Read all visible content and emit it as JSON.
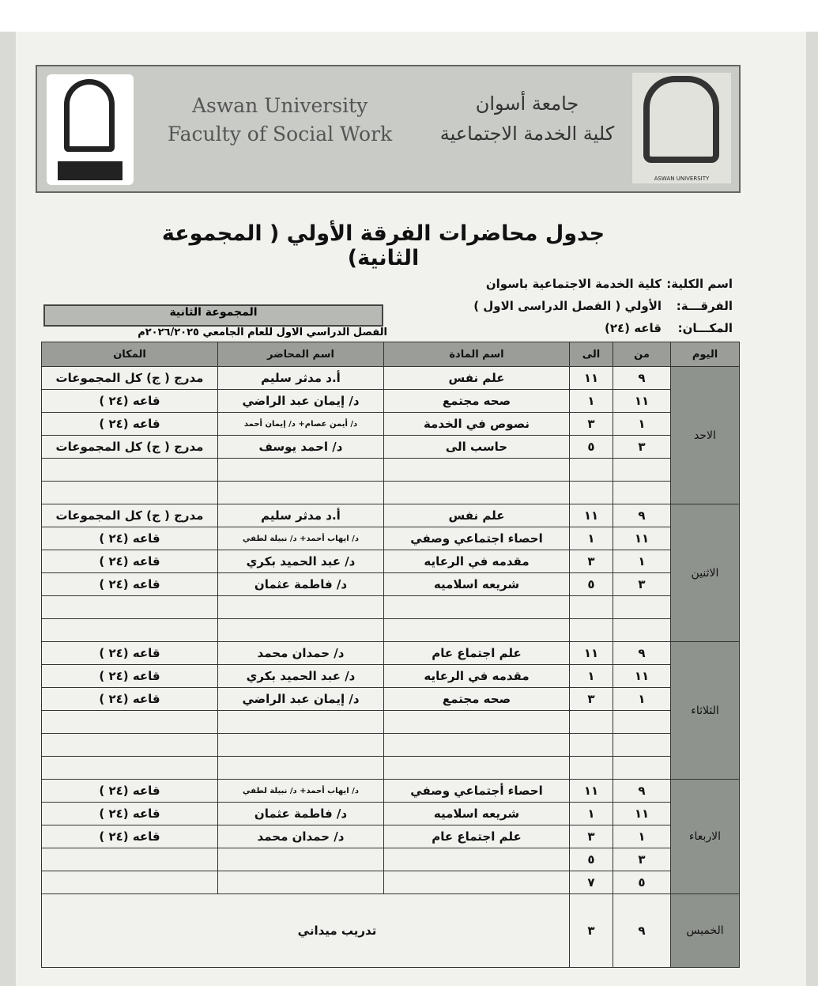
{
  "header": {
    "en_line1": "Aswan University",
    "en_line2": "Faculty of Social Work",
    "ar_line1": "جامعة أسوان",
    "ar_line2": "كلية الخدمة الاجتماعية",
    "logo_caption": "ASWAN UNIVERSITY"
  },
  "title": "جدول محاضرات الفرقة الأولي ( المجموعة الثانية)",
  "info": {
    "faculty_label": "اسم الكلية:",
    "faculty": "كلية الخدمة الاجتماعية باسوان",
    "year_label": "الفرقـــة:",
    "year": "الأولي ( الفصل الدراسى الاول )",
    "place_label": "المكـــان:",
    "place": "قاعه (٢٤)"
  },
  "group": "المجموعة الثانية",
  "term": "الفصل الدراسي الاول للعام الجامعي ٢٠٢٦/٢٠٢٥م",
  "columns": {
    "day": "اليوم",
    "from": "من",
    "to": "الى",
    "subject": "اسم المادة",
    "lecturer": "اسم المحاضر",
    "place": "المكان"
  },
  "days": [
    {
      "name": "الاحد",
      "rows": [
        {
          "from": "٩",
          "to": "١١",
          "subject": "علم نفس",
          "lecturer": "أ.د مدثر سليم",
          "place": "مدرج ( ج) كل المجموعات"
        },
        {
          "from": "١١",
          "to": "١",
          "subject": "صحه مجتمع",
          "lecturer": "د/ إيمان عبد الراضي",
          "place": "قاعه (٢٤ )"
        },
        {
          "from": "١",
          "to": "٣",
          "subject": "نصوص في الخدمة",
          "lecturer": "د/ أيمن عصام+ د/ إيمان أحمد",
          "place": "قاعه (٢٤ )"
        },
        {
          "from": "٣",
          "to": "٥",
          "subject": "حاسب الى",
          "lecturer": "د/ احمد يوسف",
          "place": "مدرج ( ج) كل المجموعات"
        },
        {},
        {}
      ]
    },
    {
      "name": "الاثنين",
      "rows": [
        {
          "from": "٩",
          "to": "١١",
          "subject": "علم نفس",
          "lecturer": "أ.د مدثر سليم",
          "place": "مدرج ( ج) كل المجموعات"
        },
        {
          "from": "١١",
          "to": "١",
          "subject": "احصاء اجتماعي وصفي",
          "lecturer": "د/ ايهاب أحمد+ د/ نبيلة لطفي",
          "place": "قاعه (٢٤ )"
        },
        {
          "from": "١",
          "to": "٣",
          "subject": "مقدمه في الرعايه",
          "lecturer": "د/ عبد الحميد بكري",
          "place": "قاعه (٢٤ )"
        },
        {
          "from": "٣",
          "to": "٥",
          "subject": "شريعه اسلاميه",
          "lecturer": "د/ فاطمة عثمان",
          "place": "قاعه (٢٤ )"
        },
        {},
        {}
      ]
    },
    {
      "name": "الثلاثاء",
      "rows": [
        {
          "from": "٩",
          "to": "١١",
          "subject": "علم اجتماع عام",
          "lecturer": "د/ حمدان محمد",
          "place": "قاعه (٢٤ )"
        },
        {
          "from": "١١",
          "to": "١",
          "subject": "مقدمه في الرعايه",
          "lecturer": "د/ عبد الحميد بكري",
          "place": "قاعه (٢٤ )"
        },
        {
          "from": "١",
          "to": "٣",
          "subject": "صحه مجتمع",
          "lecturer": "د/ إيمان عبد الراضي",
          "place": "قاعه (٢٤ )"
        },
        {},
        {},
        {}
      ]
    },
    {
      "name": "الاربعاء",
      "rows": [
        {
          "from": "٩",
          "to": "١١",
          "subject": "احصاء أجتماعي وصفي",
          "lecturer": "د/ ايهاب أحمد+ د/ نبيلة لطفي",
          "place": "قاعه (٢٤ )"
        },
        {
          "from": "١١",
          "to": "١",
          "subject": "شريعه اسلاميه",
          "lecturer": "د/ فاطمة عثمان",
          "place": "قاعه (٢٤ )"
        },
        {
          "from": "١",
          "to": "٣",
          "subject": "علم اجتماع عام",
          "lecturer": "د/ حمدان محمد",
          "place": "قاعه (٢٤ )"
        },
        {
          "from": "٣",
          "to": "٥"
        },
        {
          "from": "٥",
          "to": "٧"
        }
      ]
    },
    {
      "name": "الخميس",
      "training": {
        "from": "٩",
        "to": "٣",
        "subject": "تدريب ميداني"
      }
    }
  ]
}
